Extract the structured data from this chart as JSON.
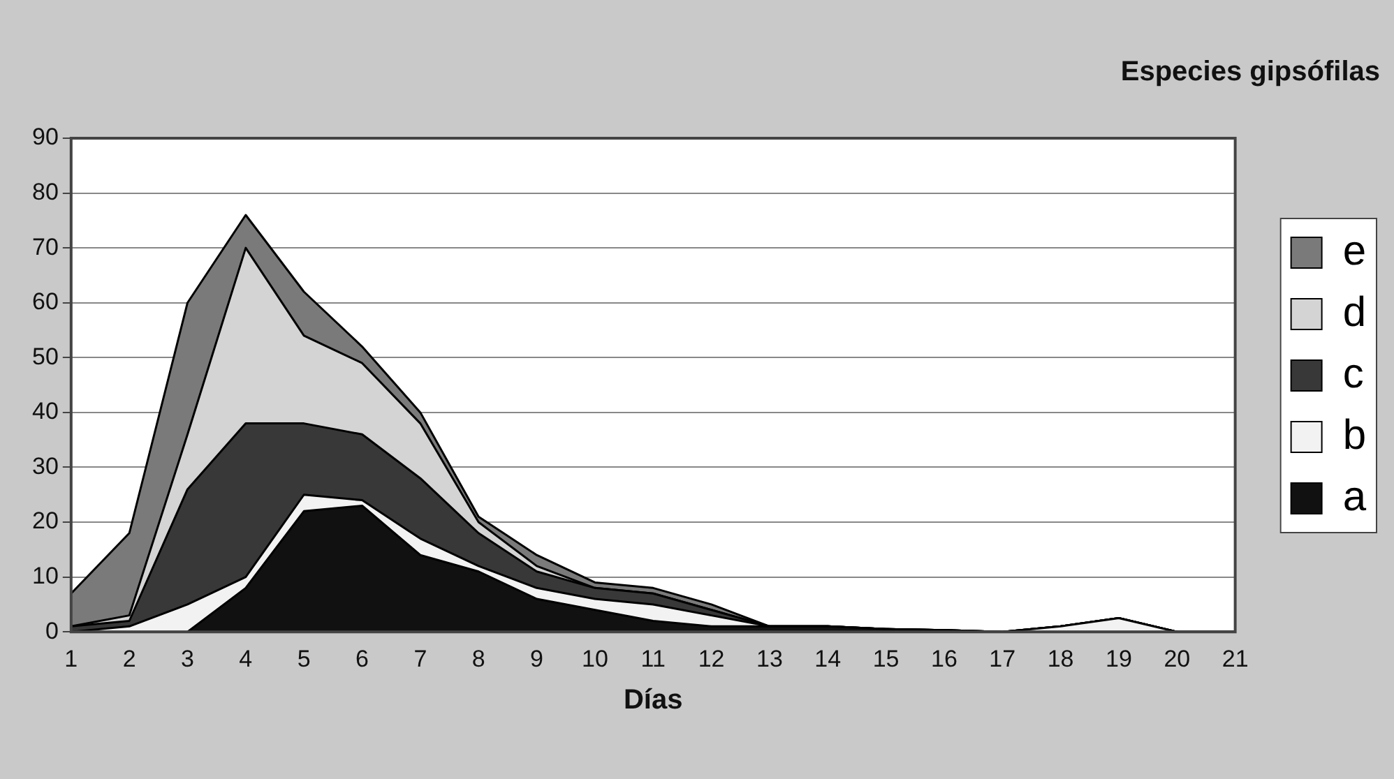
{
  "chart_data": {
    "type": "area",
    "title": "Especies gipsófilas",
    "xlabel": "Días",
    "stacked": true,
    "x": [
      1,
      2,
      3,
      4,
      5,
      6,
      7,
      8,
      9,
      10,
      11,
      12,
      13,
      14,
      15,
      16,
      17,
      18,
      19,
      20,
      21
    ],
    "xlim": [
      1,
      21
    ],
    "xticks": [
      1,
      2,
      3,
      4,
      5,
      6,
      7,
      8,
      9,
      10,
      11,
      12,
      13,
      14,
      15,
      16,
      17,
      18,
      19,
      20,
      21
    ],
    "ylim": [
      0,
      90
    ],
    "yticks": [
      0,
      10,
      20,
      30,
      40,
      50,
      60,
      70,
      80,
      90
    ],
    "grid": "y",
    "legend": "right",
    "series": [
      {
        "name": "a",
        "color": "#111111",
        "values": [
          0,
          0,
          0,
          8,
          22,
          23,
          14,
          11,
          6,
          4,
          2,
          1,
          1,
          1,
          0.5,
          0.3,
          0,
          0,
          0,
          0,
          0
        ]
      },
      {
        "name": "b",
        "color": "#f2f2f2",
        "values": [
          0,
          1,
          5,
          2,
          3,
          1,
          3,
          1,
          2,
          2,
          3,
          2,
          0,
          0,
          0,
          0,
          0,
          1,
          2.5,
          0,
          0
        ]
      },
      {
        "name": "c",
        "color": "#383838",
        "values": [
          1,
          1,
          21,
          28,
          13,
          12,
          11,
          6,
          3,
          2,
          2,
          1,
          0,
          0,
          0,
          0,
          0,
          0,
          0,
          0,
          0
        ]
      },
      {
        "name": "d",
        "color": "#d4d4d4",
        "values": [
          0,
          1,
          10,
          32,
          16,
          13,
          10,
          2,
          1,
          0,
          0,
          0,
          0,
          0,
          0,
          0,
          0,
          0,
          0,
          0,
          0
        ]
      },
      {
        "name": "e",
        "color": "#7a7a7a",
        "values": [
          6,
          15,
          24,
          6,
          8,
          3,
          2,
          1,
          2,
          1,
          1,
          1,
          0,
          0,
          0,
          0,
          0,
          0,
          0,
          0,
          0
        ]
      }
    ]
  }
}
